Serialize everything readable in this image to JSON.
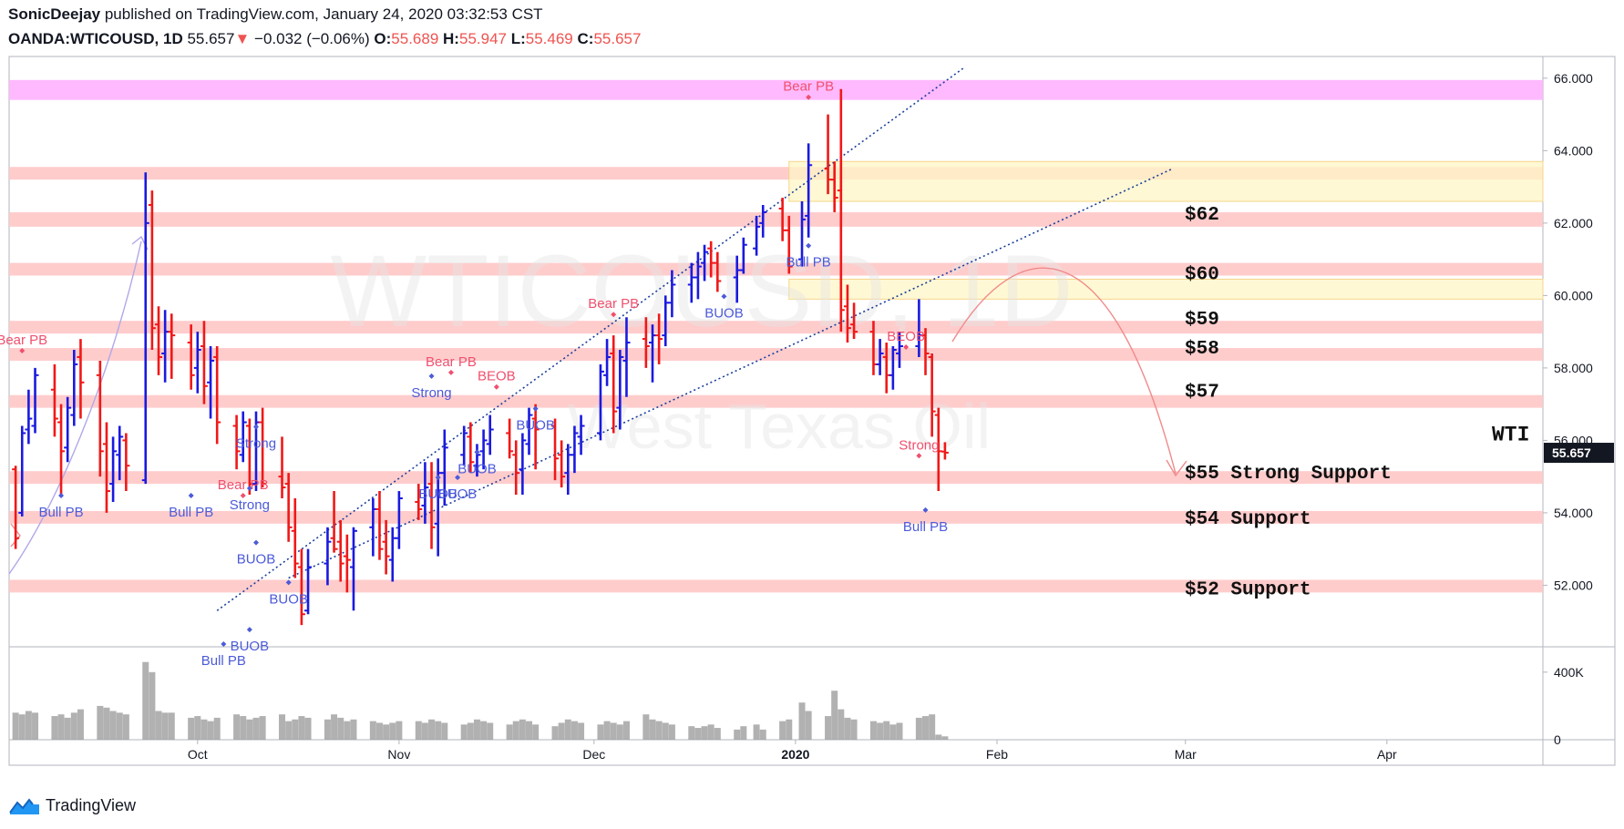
{
  "header": {
    "author": "SonicDeejay",
    "published": "published on TradingView.com, January 24, 2020 03:32:53 CST",
    "symbol": "OANDA:WTICOUSD, 1D",
    "last": "55.657",
    "change_arrow": "▼",
    "change": "−0.032 (−0.06%)",
    "o_label": "O:",
    "o_value": "55.689",
    "h_label": "H:",
    "h_value": "55.947",
    "l_label": "L:",
    "l_value": "55.469",
    "c_label": "C:",
    "c_value": "55.657"
  },
  "watermark": {
    "line1": "WTICOUSD, 1D",
    "line2": "West Texas Oil"
  },
  "footer": {
    "brand": "TradingView",
    "icon": "tradingview-logo-icon"
  },
  "colors": {
    "up": "#1a1adf",
    "down": "#f01818",
    "zone": "#ffc7c7",
    "top_zone": "#ffb3ff",
    "supply_zone": "#fff6c6",
    "price_tag": "#131722"
  },
  "chart_data": {
    "type": "bar",
    "subtype": "ohlc",
    "ylim": [
      50.3,
      66.6
    ],
    "y_ticks": [
      "66.000",
      "64.000",
      "62.000",
      "60.000",
      "58.000",
      "56.000",
      "54.000",
      "52.000"
    ],
    "x_ticks": [
      "Oct",
      "Nov",
      "Dec",
      "2020",
      "Feb",
      "Mar",
      "Apr"
    ],
    "x_tick_dates": [
      "2019-10-01",
      "2019-11-01",
      "2019-12-01",
      "2020-01-01",
      "2020-02-01",
      "2020-03-01",
      "2020-04-01"
    ],
    "x_range": [
      "2019-09-02",
      "2020-04-25"
    ],
    "last_price_label": "55.657",
    "volume": {
      "ylim": [
        0,
        550000
      ],
      "ticks": [
        "400K",
        "0"
      ]
    },
    "zones": [
      {
        "from": 65.4,
        "to": 65.95,
        "color": "#ffb3ff"
      },
      {
        "from": 63.2,
        "to": 63.55,
        "color": "#ffc7c7"
      },
      {
        "from": 61.9,
        "to": 62.3,
        "color": "#ffc7c7"
      },
      {
        "from": 60.55,
        "to": 60.9,
        "color": "#ffc7c7"
      },
      {
        "from": 58.95,
        "to": 59.3,
        "color": "#ffc7c7"
      },
      {
        "from": 58.2,
        "to": 58.55,
        "color": "#ffc7c7"
      },
      {
        "from": 56.9,
        "to": 57.25,
        "color": "#ffc7c7"
      },
      {
        "from": 54.8,
        "to": 55.15,
        "color": "#ffc7c7"
      },
      {
        "from": 53.7,
        "to": 54.05,
        "color": "#ffc7c7"
      },
      {
        "from": 51.8,
        "to": 52.15,
        "color": "#ffc7c7"
      }
    ],
    "supply_zones": [
      {
        "from": 62.6,
        "to": 63.7,
        "x0": "2019-12-31",
        "x1": "2020-04-25"
      },
      {
        "from": 59.9,
        "to": 60.45,
        "x0": "2019-12-31",
        "x1": "2020-04-25"
      }
    ],
    "trendlines": [
      {
        "x0": "2019-10-04",
        "y0": 51.3,
        "x1": "2020-01-27",
        "y1": 66.3
      },
      {
        "x0": "2019-10-15",
        "y0": 52.2,
        "x1": "2020-02-28",
        "y1": 63.5
      }
    ],
    "level_labels": [
      {
        "text": "$62",
        "y": 62.1
      },
      {
        "text": "$60",
        "y": 60.45
      },
      {
        "text": "$59",
        "y": 59.2
      },
      {
        "text": "$58",
        "y": 58.4
      },
      {
        "text": "$57",
        "y": 57.2
      },
      {
        "text": "$55 Strong Support",
        "y": 54.95
      },
      {
        "text": "$54 Support",
        "y": 53.7
      },
      {
        "text": "$52 Support",
        "y": 51.75
      },
      {
        "text": "WTI",
        "y": 56.0
      }
    ],
    "signals": [
      {
        "text": "Bear PB",
        "date": "2019-09-04",
        "y": 58.4,
        "kind": "bear"
      },
      {
        "text": "Bull PB",
        "date": "2019-09-10",
        "y": 54.4,
        "kind": "bull"
      },
      {
        "text": "Bull PB",
        "date": "2019-09-30",
        "y": 54.4,
        "kind": "bull"
      },
      {
        "text": "Strong",
        "date": "2019-10-10",
        "y": 56.3,
        "kind": "bull"
      },
      {
        "text": "Strong",
        "date": "2019-10-09",
        "y": 54.6,
        "kind": "bull"
      },
      {
        "text": "Bear PB",
        "date": "2019-10-08",
        "y": 54.4,
        "kind": "bear"
      },
      {
        "text": "BUOB",
        "date": "2019-10-10",
        "y": 53.1,
        "kind": "bull"
      },
      {
        "text": "BUOB",
        "date": "2019-10-15",
        "y": 52.0,
        "kind": "bull"
      },
      {
        "text": "BUOB",
        "date": "2019-10-09",
        "y": 50.7,
        "kind": "bull"
      },
      {
        "text": "Bull PB",
        "date": "2019-10-05",
        "y": 50.3,
        "kind": "bull"
      },
      {
        "text": "Strong",
        "date": "2019-11-06",
        "y": 57.7,
        "kind": "bull"
      },
      {
        "text": "Bear PB",
        "date": "2019-11-09",
        "y": 57.8,
        "kind": "bear"
      },
      {
        "text": "BEOB",
        "date": "2019-11-16",
        "y": 57.4,
        "kind": "bear"
      },
      {
        "text": "BUOB",
        "date": "2019-11-13",
        "y": 55.6,
        "kind": "bull"
      },
      {
        "text": "BUOB",
        "date": "2019-11-07",
        "y": 54.9,
        "kind": "bull"
      },
      {
        "text": "BUOB",
        "date": "2019-11-10",
        "y": 54.9,
        "kind": "bull"
      },
      {
        "text": "BUOB",
        "date": "2019-11-22",
        "y": 56.8,
        "kind": "bull"
      },
      {
        "text": "Bear PB",
        "date": "2019-12-04",
        "y": 59.4,
        "kind": "bear"
      },
      {
        "text": "BUOB",
        "date": "2019-12-21",
        "y": 59.9,
        "kind": "bull"
      },
      {
        "text": "Bear PB",
        "date": "2020-01-03",
        "y": 65.4,
        "kind": "bear"
      },
      {
        "text": "Bull PB",
        "date": "2020-01-03",
        "y": 61.3,
        "kind": "bull"
      },
      {
        "text": "BEOB",
        "date": "2020-01-18",
        "y": 58.5,
        "kind": "bear"
      },
      {
        "text": "Strong",
        "date": "2020-01-20",
        "y": 55.5,
        "kind": "bear"
      },
      {
        "text": "Bull PB",
        "date": "2020-01-21",
        "y": 54.0,
        "kind": "bull"
      }
    ],
    "bars": [
      [
        "2019-09-03",
        55.2,
        55.3,
        53.0,
        53.3
      ],
      [
        "2019-09-04",
        54.0,
        56.4,
        53.9,
        56.2
      ],
      [
        "2019-09-05",
        56.3,
        57.4,
        55.9,
        56.6
      ],
      [
        "2019-09-06",
        56.4,
        58.0,
        56.2,
        57.8
      ],
      [
        "2019-09-09",
        57.4,
        58.1,
        56.1,
        56.6
      ],
      [
        "2019-09-10",
        56.5,
        57.0,
        54.5,
        55.7
      ],
      [
        "2019-09-11",
        55.8,
        57.2,
        55.4,
        56.9
      ],
      [
        "2019-09-12",
        56.7,
        58.5,
        56.4,
        58.1
      ],
      [
        "2019-09-13",
        58.3,
        58.8,
        56.6,
        57.6
      ],
      [
        "2019-09-16",
        57.8,
        58.2,
        55.0,
        55.7
      ],
      [
        "2019-09-17",
        55.9,
        56.5,
        54.0,
        54.6
      ],
      [
        "2019-09-18",
        54.8,
        56.1,
        54.3,
        55.7
      ],
      [
        "2019-09-19",
        55.6,
        56.4,
        54.9,
        56.1
      ],
      [
        "2019-09-20",
        56.0,
        56.2,
        54.6,
        55.3
      ],
      [
        "2019-09-23",
        54.9,
        63.4,
        54.8,
        62.0
      ],
      [
        "2019-09-24",
        62.5,
        62.9,
        58.5,
        59.1
      ],
      [
        "2019-09-25",
        59.2,
        59.7,
        57.8,
        58.3
      ],
      [
        "2019-09-26",
        58.4,
        59.6,
        57.6,
        59.0
      ],
      [
        "2019-09-27",
        59.0,
        59.5,
        57.7,
        58.9
      ],
      [
        "2019-09-30",
        58.7,
        59.2,
        57.4,
        57.8
      ],
      [
        "2019-10-01",
        58.0,
        59.0,
        57.3,
        58.5
      ],
      [
        "2019-10-02",
        58.6,
        59.3,
        57.0,
        57.5
      ],
      [
        "2019-10-03",
        57.6,
        58.6,
        56.6,
        58.2
      ],
      [
        "2019-10-04",
        58.3,
        58.6,
        55.9,
        56.5
      ],
      [
        "2019-10-07",
        56.4,
        56.7,
        55.2,
        55.7
      ],
      [
        "2019-10-08",
        55.6,
        56.8,
        55.4,
        56.5
      ],
      [
        "2019-10-09",
        56.4,
        56.6,
        54.5,
        54.8
      ],
      [
        "2019-10-10",
        54.8,
        56.8,
        54.6,
        56.5
      ],
      [
        "2019-10-11",
        56.5,
        56.9,
        54.7,
        54.8
      ],
      [
        "2019-10-14",
        55.0,
        56.1,
        54.4,
        54.7
      ],
      [
        "2019-10-15",
        54.8,
        55.1,
        53.2,
        53.6
      ],
      [
        "2019-10-16",
        53.5,
        54.4,
        52.2,
        52.6
      ],
      [
        "2019-10-17",
        52.5,
        53.0,
        50.9,
        51.2
      ],
      [
        "2019-10-18",
        51.3,
        53.0,
        51.2,
        52.5
      ],
      [
        "2019-10-21",
        52.6,
        53.6,
        52.0,
        53.2
      ],
      [
        "2019-10-22",
        53.3,
        54.6,
        52.9,
        53.0
      ],
      [
        "2019-10-23",
        53.2,
        53.8,
        52.1,
        52.6
      ],
      [
        "2019-10-24",
        52.8,
        53.4,
        51.8,
        52.7
      ],
      [
        "2019-10-25",
        52.5,
        53.6,
        51.3,
        53.5
      ],
      [
        "2019-10-28",
        53.6,
        54.4,
        52.8,
        54.1
      ],
      [
        "2019-10-29",
        54.1,
        54.6,
        52.7,
        53.0
      ],
      [
        "2019-10-30",
        53.2,
        53.8,
        52.3,
        52.8
      ],
      [
        "2019-10-31",
        52.7,
        53.6,
        52.1,
        53.3
      ],
      [
        "2019-11-01",
        53.3,
        54.6,
        53.0,
        54.4
      ],
      [
        "2019-11-04",
        54.3,
        54.8,
        53.8,
        54.1
      ],
      [
        "2019-11-05",
        54.2,
        55.4,
        53.7,
        54.7
      ],
      [
        "2019-11-06",
        54.8,
        55.4,
        53.0,
        53.6
      ],
      [
        "2019-11-07",
        53.7,
        55.5,
        52.8,
        55.1
      ],
      [
        "2019-11-08",
        55.1,
        56.3,
        54.2,
        55.8
      ],
      [
        "2019-11-11",
        55.6,
        56.4,
        55.3,
        56.2
      ],
      [
        "2019-11-12",
        56.1,
        56.5,
        55.1,
        55.4
      ],
      [
        "2019-11-13",
        55.3,
        55.9,
        55.0,
        55.6
      ],
      [
        "2019-11-14",
        55.7,
        56.3,
        55.2,
        56.0
      ],
      [
        "2019-11-15",
        55.9,
        56.7,
        55.6,
        56.3
      ],
      [
        "2019-11-18",
        56.2,
        56.6,
        55.5,
        55.7
      ],
      [
        "2019-11-19",
        55.6,
        56.0,
        54.5,
        55.1
      ],
      [
        "2019-11-20",
        55.2,
        56.2,
        54.5,
        56.0
      ],
      [
        "2019-11-21",
        55.9,
        56.9,
        55.6,
        56.7
      ],
      [
        "2019-11-22",
        56.6,
        57.0,
        55.2,
        56.3
      ],
      [
        "2019-11-25",
        56.4,
        56.6,
        54.9,
        55.5
      ],
      [
        "2019-11-26",
        55.6,
        56.0,
        54.7,
        55.0
      ],
      [
        "2019-11-27",
        55.1,
        55.9,
        54.5,
        55.6
      ],
      [
        "2019-11-28",
        55.6,
        56.4,
        55.1,
        56.2
      ],
      [
        "2019-11-29",
        56.1,
        56.7,
        55.6,
        56.4
      ],
      [
        "2019-12-02",
        56.2,
        58.1,
        56.0,
        57.9
      ],
      [
        "2019-12-03",
        57.8,
        58.8,
        57.5,
        58.3
      ],
      [
        "2019-12-04",
        58.4,
        58.9,
        56.2,
        56.8
      ],
      [
        "2019-12-05",
        56.9,
        58.5,
        56.3,
        58.3
      ],
      [
        "2019-12-06",
        58.2,
        59.4,
        57.2,
        58.7
      ],
      [
        "2019-12-09",
        58.8,
        59.4,
        58.0,
        58.6
      ],
      [
        "2019-12-10",
        58.7,
        59.2,
        57.6,
        58.9
      ],
      [
        "2019-12-11",
        58.9,
        59.5,
        58.1,
        58.8
      ],
      [
        "2019-12-12",
        58.9,
        60.0,
        58.6,
        59.8
      ],
      [
        "2019-12-13",
        59.8,
        60.7,
        59.4,
        60.3
      ],
      [
        "2019-12-16",
        60.3,
        60.9,
        59.8,
        60.5
      ],
      [
        "2019-12-17",
        60.5,
        61.2,
        59.9,
        60.8
      ],
      [
        "2019-12-18",
        60.9,
        61.4,
        60.4,
        61.2
      ],
      [
        "2019-12-19",
        61.3,
        61.5,
        60.5,
        60.9
      ],
      [
        "2019-12-20",
        60.9,
        61.2,
        60.1,
        60.4
      ],
      [
        "2019-12-23",
        60.5,
        61.1,
        59.8,
        60.7
      ],
      [
        "2019-12-24",
        60.7,
        61.6,
        60.6,
        61.4
      ],
      [
        "2019-12-26",
        61.3,
        62.2,
        61.1,
        61.9
      ],
      [
        "2019-12-27",
        62.0,
        62.5,
        61.6,
        62.3
      ],
      [
        "2019-12-30",
        62.4,
        62.7,
        61.5,
        61.8
      ],
      [
        "2019-12-31",
        61.8,
        62.2,
        60.6,
        60.8
      ],
      [
        "2020-01-02",
        61.0,
        62.6,
        60.8,
        62.1
      ],
      [
        "2020-01-03",
        62.2,
        64.2,
        61.6,
        63.6
      ],
      [
        "2020-01-06",
        63.5,
        65.0,
        62.8,
        63.2
      ],
      [
        "2020-01-07",
        63.2,
        63.7,
        62.3,
        62.7
      ],
      [
        "2020-01-08",
        62.9,
        65.7,
        59.0,
        59.6
      ],
      [
        "2020-01-09",
        59.7,
        60.3,
        58.7,
        59.1
      ],
      [
        "2020-01-10",
        59.2,
        59.8,
        58.8,
        59.0
      ],
      [
        "2020-01-13",
        59.0,
        59.3,
        57.8,
        58.1
      ],
      [
        "2020-01-14",
        58.1,
        58.8,
        57.8,
        58.4
      ],
      [
        "2020-01-15",
        58.3,
        58.7,
        57.3,
        57.8
      ],
      [
        "2020-01-16",
        57.8,
        58.6,
        57.4,
        58.5
      ],
      [
        "2020-01-17",
        58.4,
        59.0,
        58.0,
        58.6
      ],
      [
        "2020-01-20",
        58.6,
        59.9,
        58.3,
        58.9
      ],
      [
        "2020-01-21",
        58.9,
        59.1,
        57.8,
        58.4
      ],
      [
        "2020-01-22",
        58.3,
        58.4,
        56.1,
        56.8
      ],
      [
        "2020-01-23",
        56.7,
        56.9,
        54.6,
        55.7
      ],
      [
        "2020-01-24",
        55.69,
        55.95,
        55.47,
        55.66
      ]
    ],
    "volume_values": [
      160000,
      150000,
      170000,
      160000,
      140000,
      150000,
      130000,
      160000,
      180000,
      200000,
      190000,
      170000,
      160000,
      150000,
      460000,
      400000,
      170000,
      160000,
      160000,
      130000,
      140000,
      120000,
      110000,
      130000,
      150000,
      140000,
      120000,
      130000,
      140000,
      150000,
      110000,
      120000,
      140000,
      130000,
      120000,
      150000,
      130000,
      110000,
      120000,
      110000,
      100000,
      90000,
      100000,
      110000,
      110000,
      100000,
      120000,
      110000,
      100000,
      90000,
      100000,
      120000,
      110000,
      100000,
      90000,
      110000,
      120000,
      110000,
      90000,
      80000,
      100000,
      120000,
      110000,
      100000,
      90000,
      110000,
      100000,
      90000,
      110000,
      150000,
      120000,
      110000,
      100000,
      90000,
      80000,
      70000,
      80000,
      90000,
      70000,
      60000,
      80000,
      90000,
      60000,
      110000,
      120000,
      220000,
      170000,
      140000,
      290000,
      180000,
      130000,
      120000,
      110000,
      100000,
      110000,
      90000,
      100000,
      130000,
      140000,
      150000,
      30000,
      20000
    ]
  }
}
